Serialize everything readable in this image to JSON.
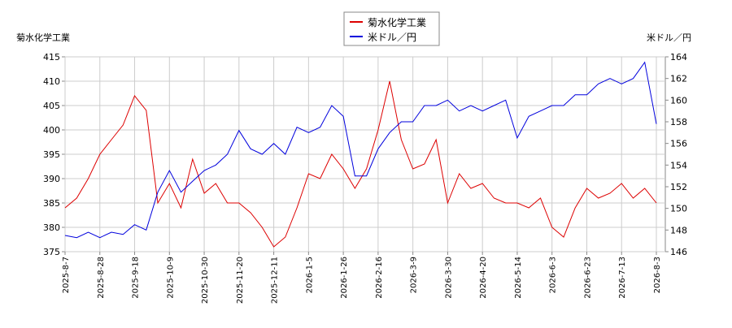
{
  "chart_data": {
    "type": "line",
    "y_label": "菊水化学工業",
    "y2_label": "米ドル／円",
    "categories": [
      "2025-8-7",
      null,
      null,
      "2025-8-28",
      null,
      null,
      "2025-9-18",
      null,
      null,
      "2025-10-9",
      null,
      null,
      "2025-10-30",
      null,
      null,
      "2025-11-20",
      null,
      null,
      "2025-12-11",
      null,
      null,
      "2026-1-5",
      null,
      null,
      "2026-1-26",
      null,
      null,
      "2026-2-16",
      null,
      null,
      "2026-3-9",
      null,
      null,
      "2026-3-30",
      null,
      null,
      "2026-4-20",
      null,
      null,
      "2026-5-14",
      null,
      null,
      "2026-6-3",
      null,
      null,
      "2026-6-23",
      null,
      null,
      "2026-7-13",
      null,
      null,
      "2026-8-3"
    ],
    "series": [
      {
        "name": "菊水化学工業",
        "color": "#dd0000",
        "axis": "y",
        "values": [
          384,
          386,
          390,
          395,
          398,
          401,
          407,
          404,
          385,
          389,
          384,
          394,
          387,
          389,
          385,
          385,
          383,
          380,
          376,
          378,
          384,
          391,
          390,
          395,
          392,
          388,
          392,
          400,
          410,
          398,
          392,
          393,
          398,
          385,
          391,
          388,
          389,
          386,
          385,
          385,
          384,
          386,
          380,
          378,
          384,
          388,
          386,
          387,
          389,
          386,
          388,
          385
        ]
      },
      {
        "name": "米ドル／円",
        "color": "#0000dd",
        "axis": "y2",
        "values": [
          147.5,
          147.3,
          147.8,
          147.3,
          147.8,
          147.6,
          148.5,
          148,
          151.5,
          153.5,
          151.5,
          152.5,
          153.5,
          154,
          155,
          157.2,
          155.5,
          155,
          156,
          155,
          157.5,
          157,
          157.5,
          159.5,
          158.5,
          153,
          153,
          155.5,
          157,
          158,
          158,
          159.5,
          159.5,
          160,
          159,
          159.5,
          159,
          159.5,
          160,
          156.5,
          158.5,
          159,
          159.5,
          159.5,
          160.5,
          160.5,
          161.5,
          162,
          161.5,
          162,
          163.5,
          157.8
        ]
      }
    ],
    "ylim": [
      375,
      415
    ],
    "yticks": [
      375,
      380,
      385,
      390,
      395,
      400,
      405,
      410,
      415
    ],
    "y2lim": [
      146,
      164
    ],
    "y2ticks": [
      146,
      148,
      150,
      152,
      154,
      156,
      158,
      160,
      162,
      164
    ],
    "grid": true
  }
}
